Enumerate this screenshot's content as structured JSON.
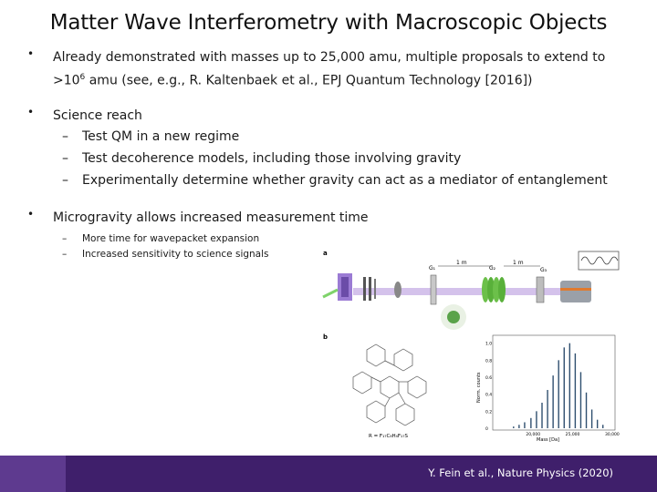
{
  "slide": {
    "title": "Matter Wave Interferometry with Macroscopic Objects",
    "bullets": [
      {
        "marker": "•",
        "text_pre": "Already demonstrated with masses up to 25,000 amu, multiple proposals to extend to >10",
        "sup": "6",
        "text_post": " amu (see, e.g., R. Kaltenbaek et al., EPJ Quantum Technology [2016])"
      },
      {
        "marker": "•",
        "text": "Science reach",
        "subitems": [
          "Test QM in a new regime",
          "Test decoherence models, including those involving gravity",
          "Experimentally determine whether gravity can act as a mediator of entanglement"
        ]
      },
      {
        "marker": "•",
        "text": "Microgravity allows increased measurement time",
        "subitems": [
          "More time for wavepacket expansion",
          "Increased sensitivity to science signals"
        ]
      }
    ],
    "dash": "–"
  },
  "figure": {
    "panel_a": "a",
    "panel_b": "b",
    "labels": {
      "d1": "1 m",
      "d2": "1 m",
      "g1": "G₁",
      "g2": "G₂",
      "g3": "G₃"
    },
    "formula": "R = F₁₇C₈H₄F₁₇S",
    "chart_data": {
      "type": "bar",
      "ylabel": "Norm. counts",
      "xlabel": "Mass [Da]",
      "yticks": [
        "0",
        "0.2",
        "0.4",
        "0.6",
        "0.8",
        "1.0"
      ],
      "xticks": [
        "20,000",
        "25,000",
        "30,000"
      ],
      "xlim": [
        15000,
        30000
      ],
      "ylim": [
        0,
        1.05
      ],
      "x": [
        17400,
        18100,
        18800,
        19600,
        20300,
        21000,
        21700,
        22400,
        23100,
        23800,
        24500,
        25200,
        25900,
        26600,
        27300,
        28000,
        28700
      ],
      "values": [
        0.02,
        0.04,
        0.07,
        0.12,
        0.2,
        0.3,
        0.45,
        0.62,
        0.8,
        0.95,
        1.0,
        0.88,
        0.66,
        0.42,
        0.22,
        0.1,
        0.04
      ]
    }
  },
  "footer": {
    "citation": "Y. Fein et al., Nature Physics (2020)"
  }
}
